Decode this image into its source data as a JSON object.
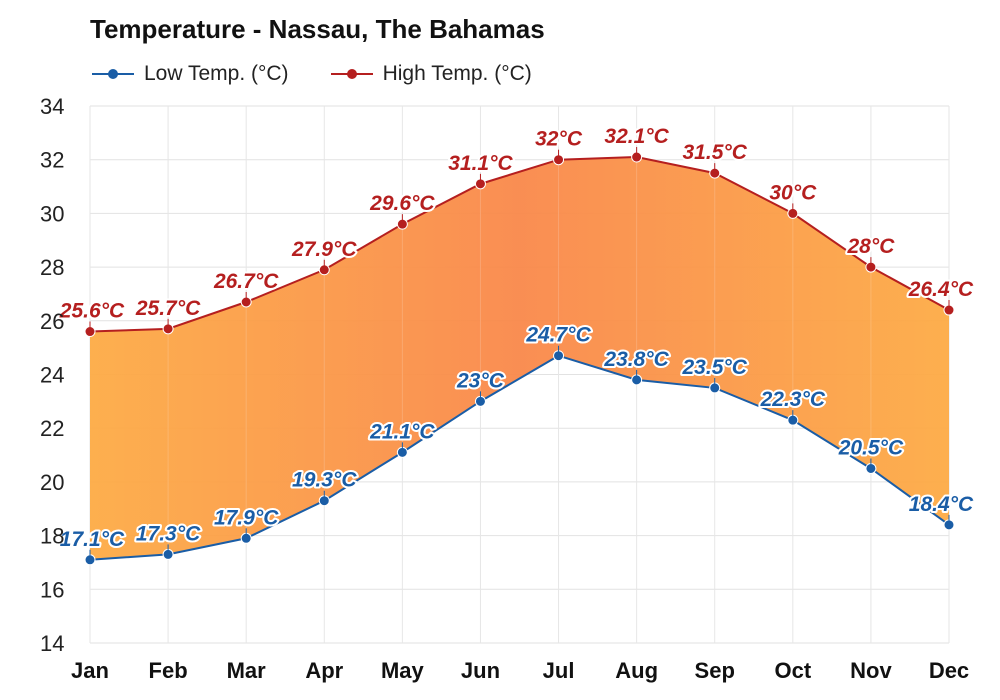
{
  "chart_data": {
    "type": "area",
    "title": "Temperature - Nassau, The Bahamas",
    "categories": [
      "Jan",
      "Feb",
      "Mar",
      "Apr",
      "May",
      "Jun",
      "Jul",
      "Aug",
      "Sep",
      "Oct",
      "Nov",
      "Dec"
    ],
    "series": [
      {
        "name": "Low Temp. (°C)",
        "color": "#1a5da6",
        "values": [
          17.1,
          17.3,
          17.9,
          19.3,
          21.1,
          23,
          24.7,
          23.8,
          23.5,
          22.3,
          20.5,
          18.4
        ],
        "labels": [
          "17.1°C",
          "17.3°C",
          "17.9°C",
          "19.3°C",
          "21.1°C",
          "23°C",
          "24.7°C",
          "23.8°C",
          "23.5°C",
          "22.3°C",
          "20.5°C",
          "18.4°C"
        ]
      },
      {
        "name": "High Temp. (°C)",
        "color": "#b51f1f",
        "values": [
          25.6,
          25.7,
          26.7,
          27.9,
          29.6,
          31.1,
          32,
          32.1,
          31.5,
          30,
          28,
          26.4
        ],
        "labels": [
          "25.6°C",
          "25.7°C",
          "26.7°C",
          "27.9°C",
          "29.6°C",
          "31.1°C",
          "32°C",
          "32.1°C",
          "31.5°C",
          "30°C",
          "28°C",
          "26.4°C"
        ]
      }
    ],
    "ylim": [
      14,
      34
    ],
    "yticks": [
      "14",
      "16",
      "18",
      "20",
      "22",
      "24",
      "26",
      "28",
      "30",
      "32",
      "34"
    ],
    "grid": true,
    "legend_position": "top-left",
    "fill_color_warm": "#f98b3c",
    "fill_color_cool": "#fdb045"
  }
}
